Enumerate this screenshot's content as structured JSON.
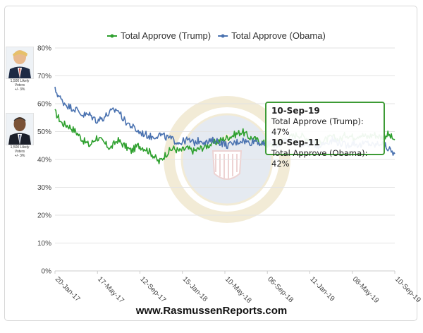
{
  "colors": {
    "trump": "#2ea02e",
    "obama": "#4a72b0",
    "grid": "#e3e3e3",
    "axis": "#cccccc",
    "tooltip_border": "#3d9b35"
  },
  "portraits": [
    {
      "caption_1": "1,500 Likely",
      "caption_2": "Voters",
      "caption_3": "+/- 3%"
    },
    {
      "caption_1": "1,500 Likely",
      "caption_2": "Voters",
      "caption_3": "+/- 3%"
    }
  ],
  "tooltip": {
    "date1": "10-Sep-19",
    "line1": "Total Approve (Trump): 47%",
    "date2": "10-Sep-11",
    "line2": "Total Approve (Obama): 42%"
  },
  "footer": "www.RasmussenReports.com",
  "chart_data": {
    "type": "line",
    "title": "",
    "xlabel": "",
    "ylabel": "",
    "ylim": [
      0,
      80
    ],
    "yticks": [
      "0%",
      "10%",
      "20%",
      "30%",
      "40%",
      "50%",
      "60%",
      "70%",
      "80%"
    ],
    "xticks": [
      "20-Jan-17",
      "17-May-17",
      "12-Sep-17",
      "15-Jan-18",
      "10-May-18",
      "06-Sep-18",
      "11-Jan-19",
      "08-May-19",
      "10-Sep-19"
    ],
    "legend_position": "top",
    "grid": true,
    "series": [
      {
        "name": "Total Approve (Trump)",
        "color": "#2ea02e",
        "values": [
          57,
          53,
          52,
          50,
          47,
          45,
          48,
          46,
          44,
          47,
          45,
          43,
          45,
          44,
          42,
          39,
          42,
          44,
          43,
          44,
          43,
          44,
          45,
          46,
          47,
          48,
          49,
          50,
          48,
          47,
          46,
          45,
          46,
          47,
          48,
          49,
          48,
          47,
          46,
          47,
          48,
          47,
          49,
          48,
          49,
          48,
          49,
          48,
          49,
          47
        ]
      },
      {
        "name": "Total Approve (Obama)",
        "color": "#4a72b0",
        "values": [
          65,
          61,
          59,
          58,
          56,
          56,
          54,
          55,
          57,
          58,
          54,
          52,
          50,
          49,
          48,
          49,
          48,
          47,
          46,
          47,
          46,
          47,
          46,
          47,
          46,
          45,
          46,
          47,
          46,
          47,
          45,
          46,
          45,
          46,
          47,
          46,
          45,
          46,
          45,
          46,
          47,
          46,
          45,
          46,
          45,
          46,
          45,
          46,
          44,
          42
        ]
      }
    ]
  }
}
